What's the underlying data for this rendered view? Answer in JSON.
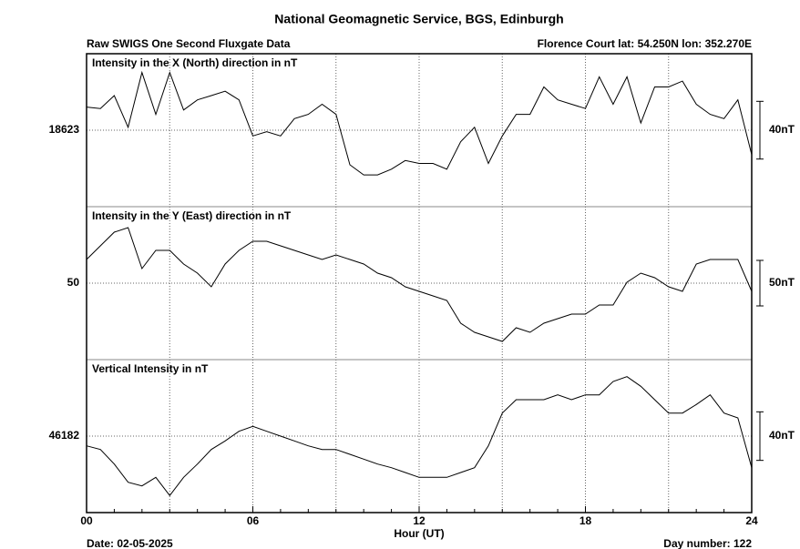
{
  "page": {
    "title": "National Geomagnetic Service, BGS, Edinburgh",
    "left_caption": "Raw SWIGS One Second Fluxgate Data",
    "right_caption": "Florence Court  lat: 54.250N lon: 352.270E",
    "date": "Date: 02-05-2025",
    "day": "Day number:  122"
  },
  "x_axis": {
    "label": "Hour (UT)",
    "xlim": [
      0,
      24
    ],
    "xticks": [
      {
        "value": 0,
        "label": "00"
      },
      {
        "value": 6,
        "label": "06"
      },
      12,
      18,
      24
    ],
    "xgrid": [
      3,
      6,
      9,
      12,
      15,
      18,
      21
    ],
    "xminor": [
      1,
      2,
      3,
      4,
      5,
      7,
      8,
      9,
      10,
      11,
      13,
      14,
      15,
      16,
      17,
      19,
      20,
      21,
      22,
      23
    ]
  },
  "chart_data": [
    {
      "type": "line",
      "title": "Intensity in the X (North) direction in nT",
      "color": "#000000",
      "x": [
        0,
        0.5,
        1,
        1.5,
        2,
        2.5,
        3,
        3.5,
        4,
        4.5,
        5,
        5.5,
        6,
        6.5,
        7,
        7.5,
        8,
        8.5,
        9,
        9.5,
        10,
        10.5,
        11,
        11.5,
        12,
        12.5,
        13,
        13.5,
        14,
        14.5,
        15,
        15.5,
        16,
        16.5,
        17,
        17.5,
        18,
        18.5,
        19,
        19.5,
        20,
        20.5,
        21,
        21.5,
        22,
        22.5,
        23,
        23.5,
        24
      ],
      "values": [
        18639,
        18638,
        18647,
        18625,
        18663,
        18634,
        18663,
        18637,
        18644,
        18647,
        18650,
        18644,
        18619,
        18622,
        18619,
        18631,
        18634,
        18641,
        18634,
        18599,
        18592,
        18592,
        18596,
        18602,
        18600,
        18600,
        18596,
        18615,
        18625,
        18600,
        18619,
        18634,
        18634,
        18653,
        18644,
        18641,
        18638,
        18660,
        18641,
        18660,
        18628,
        18653,
        18653,
        18657,
        18641,
        18634,
        18631,
        18644,
        18606
      ],
      "ylim": [
        18570,
        18676
      ],
      "yticks": [
        18623
      ],
      "grid": true,
      "scale": {
        "value": 40,
        "label": "40nT"
      }
    },
    {
      "type": "line",
      "title": "Intensity in the Y (East) direction in nT",
      "color": "#000000",
      "x": [
        0,
        0.5,
        1,
        1.5,
        2,
        2.5,
        3,
        3.5,
        4,
        4.5,
        5,
        5.5,
        6,
        6.5,
        7,
        7.5,
        8,
        8.5,
        9,
        9.5,
        10,
        10.5,
        11,
        11.5,
        12,
        12.5,
        13,
        13.5,
        14,
        14.5,
        15,
        15.5,
        16,
        16.5,
        17,
        17.5,
        18,
        18.5,
        19,
        19.5,
        20,
        20.5,
        21,
        21.5,
        22,
        22.5,
        23,
        23.5,
        24
      ],
      "values": [
        76,
        91,
        106,
        111,
        66,
        86,
        86,
        71,
        61,
        46,
        71,
        86,
        96,
        96,
        91,
        86,
        81,
        76,
        81,
        76,
        71,
        61,
        56,
        46,
        41,
        36,
        31,
        6,
        -4,
        -9,
        -14,
        1,
        -4,
        6,
        11,
        16,
        16,
        26,
        26,
        51,
        61,
        56,
        46,
        41,
        71,
        76,
        76,
        76,
        41
      ],
      "ylim": [
        -34,
        134
      ],
      "yticks": [
        50
      ],
      "grid": true,
      "scale": {
        "value": 50,
        "label": "50nT"
      }
    },
    {
      "type": "line",
      "title": "Vertical Intensity in nT",
      "color": "#000000",
      "x": [
        0,
        0.5,
        1,
        1.5,
        2,
        2.5,
        3,
        3.5,
        4,
        4.5,
        5,
        5.5,
        6,
        6.5,
        7,
        7.5,
        8,
        8.5,
        9,
        9.5,
        10,
        10.5,
        11,
        11.5,
        12,
        12.5,
        13,
        13.5,
        14,
        14.5,
        15,
        15.5,
        16,
        16.5,
        17,
        17.5,
        18,
        18.5,
        19,
        19.5,
        20,
        20.5,
        21,
        21.5,
        22,
        22.5,
        23,
        23.5,
        24
      ],
      "values": [
        46174,
        46171,
        46159,
        46144,
        46141,
        46148,
        46133,
        46148,
        46159,
        46171,
        46178,
        46186,
        46190,
        46186,
        46182,
        46178,
        46174,
        46171,
        46171,
        46167,
        46163,
        46159,
        46156,
        46152,
        46148,
        46148,
        46148,
        46152,
        46156,
        46174,
        46201,
        46212,
        46212,
        46212,
        46216,
        46212,
        46216,
        46216,
        46227,
        46231,
        46223,
        46212,
        46201,
        46201,
        46208,
        46216,
        46201,
        46197,
        46156
      ],
      "ylim": [
        46119,
        46245
      ],
      "yticks": [
        46182
      ],
      "grid": true,
      "scale": {
        "value": 40,
        "label": "40nT"
      }
    }
  ]
}
